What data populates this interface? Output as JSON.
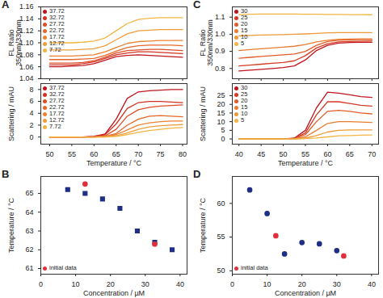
{
  "chart_data": [
    {
      "type": "line",
      "title": "A",
      "ylabel": "FL Ratio\n350nm/330nm",
      "xlabel": null,
      "x": [
        50,
        52.5,
        55,
        57.5,
        60,
        62.5,
        65,
        67.5,
        70,
        72.5,
        75,
        77.5,
        80
      ],
      "xlim": [
        48,
        81
      ],
      "xticks": [
        50,
        55,
        60,
        65,
        70,
        75,
        80
      ],
      "ylim": [
        1.04,
        1.16
      ],
      "yticks": [
        1.04,
        1.06,
        1.08,
        {
          "value": 1.1,
          "label": "1.10"
        },
        1.12,
        1.14,
        1.16
      ],
      "tick_labels": "y",
      "legend": "top-left",
      "series": [
        {
          "name": "37.72",
          "color": "#c0161e",
          "values": [
            1.06,
            1.06,
            1.061,
            1.062,
            1.065,
            1.071,
            1.077,
            1.079,
            1.08,
            1.079,
            1.078,
            1.077,
            1.076
          ]
        },
        {
          "name": "32.72",
          "color": "#d33222",
          "values": [
            1.063,
            1.063,
            1.063,
            1.065,
            1.068,
            1.074,
            1.08,
            1.083,
            1.085,
            1.085,
            1.084,
            1.083,
            1.082
          ]
        },
        {
          "name": "27.72",
          "color": "#de4d26",
          "values": [
            1.066,
            1.066,
            1.066,
            1.067,
            1.07,
            1.076,
            1.083,
            1.087,
            1.088,
            1.089,
            1.089,
            1.088,
            1.087
          ]
        },
        {
          "name": "22.72",
          "color": "#e6672b",
          "values": [
            1.072,
            1.072,
            1.072,
            1.073,
            1.074,
            1.079,
            1.086,
            1.092,
            1.095,
            1.096,
            1.096,
            1.096,
            1.095
          ]
        },
        {
          "name": "17.72",
          "color": "#ec8231",
          "values": [
            1.078,
            1.078,
            1.078,
            1.079,
            1.08,
            1.085,
            1.092,
            1.099,
            1.102,
            1.103,
            1.104,
            1.104,
            1.104
          ]
        },
        {
          "name": "12.72",
          "color": "#f09c3a",
          "values": [
            1.088,
            1.088,
            1.088,
            1.089,
            1.09,
            1.095,
            1.105,
            1.115,
            1.12,
            1.121,
            1.122,
            1.122,
            1.122
          ]
        },
        {
          "name": "7.72",
          "color": "#f2b544",
          "values": [
            1.1,
            1.1,
            1.1,
            1.101,
            1.103,
            1.108,
            1.12,
            1.132,
            1.139,
            1.141,
            1.142,
            1.142,
            1.142
          ]
        }
      ]
    },
    {
      "type": "line",
      "ylabel": "Scattering / mAU",
      "xlabel": "Temperature / °C",
      "x": [
        50,
        52.5,
        55,
        57.5,
        60,
        62.5,
        65,
        67.5,
        70,
        72.5,
        75,
        77.5,
        80
      ],
      "xlim": [
        48,
        81
      ],
      "xticks": [
        50,
        55,
        60,
        65,
        70,
        75,
        80
      ],
      "ylim": [
        -1.2,
        9
      ],
      "yticks": [
        0,
        2,
        4,
        6,
        8
      ],
      "legend": "top-left",
      "series": [
        {
          "name": "37.72",
          "color": "#c0161e",
          "values": [
            0,
            0,
            0,
            0,
            0.1,
            0.5,
            3.0,
            6.5,
            7.6,
            7.8,
            7.9,
            8.0,
            8.0
          ]
        },
        {
          "name": "32.72",
          "color": "#d33222",
          "values": [
            0,
            0,
            0,
            0,
            0.1,
            0.4,
            2.2,
            4.8,
            5.8,
            6.0,
            6.0,
            5.9,
            5.8
          ]
        },
        {
          "name": "27.72",
          "color": "#de4d26",
          "values": [
            0,
            0,
            0,
            0,
            0,
            0.2,
            1.3,
            3.5,
            4.6,
            5.0,
            5.2,
            5.3,
            5.4
          ]
        },
        {
          "name": "22.72",
          "color": "#e6672b",
          "values": [
            0,
            0,
            0,
            0,
            0,
            0.1,
            0.6,
            2.0,
            3.0,
            3.5,
            3.6,
            3.5,
            3.4
          ]
        },
        {
          "name": "17.72",
          "color": "#ec8231",
          "values": [
            0,
            0,
            0,
            0,
            0,
            0.1,
            0.4,
            1.2,
            2.0,
            2.4,
            2.6,
            2.7,
            2.7
          ]
        },
        {
          "name": "12.72",
          "color": "#f09c3a",
          "values": [
            0,
            0,
            0,
            0,
            0,
            0,
            0.2,
            0.7,
            1.3,
            1.7,
            1.9,
            2.0,
            2.1
          ]
        },
        {
          "name": "7.72",
          "color": "#f2b544",
          "values": [
            0,
            0,
            0,
            0,
            0,
            0,
            0.1,
            0.4,
            0.8,
            1.1,
            1.3,
            1.5,
            1.6
          ]
        }
      ]
    },
    {
      "type": "scatter",
      "title": "B",
      "ylabel": "Temperature / °C",
      "xlabel": "Concentration / µM",
      "xlim": [
        0,
        42
      ],
      "xticks": [
        0,
        10,
        20,
        30,
        40
      ],
      "ylim": [
        60.7,
        65.9
      ],
      "yticks": [
        61,
        62,
        63,
        64,
        65
      ],
      "legend": "bottom-left",
      "series": [
        {
          "color": "#1f2f86",
          "marker": "square",
          "x": [
            7.72,
            12.72,
            17.72,
            22.72,
            27.72,
            32.72,
            37.72
          ],
          "values": [
            65.2,
            65.0,
            64.7,
            64.2,
            63.0,
            62.4,
            62.0
          ]
        },
        {
          "name": "initial data",
          "color": "#e0303a",
          "marker": "circle",
          "x": [
            12.72,
            32.72
          ],
          "values": [
            65.5,
            62.3
          ]
        }
      ]
    },
    {
      "type": "line",
      "title": "C",
      "ylabel": "FL Ratio\n350nm/330nm",
      "xlabel": null,
      "x": [
        40,
        42.5,
        45,
        47.5,
        50,
        52.5,
        55,
        57.5,
        60,
        62.5,
        65,
        67.5,
        70
      ],
      "xlim": [
        38.5,
        71.5
      ],
      "xticks": [
        40,
        45,
        50,
        55,
        60,
        65,
        70
      ],
      "ylim": [
        0.74,
        1.16
      ],
      "yticks": [
        0.8,
        0.9,
        {
          "value": 1.0,
          "label": "1.0"
        },
        1.1
      ],
      "tick_labels": "y",
      "legend": "top-left",
      "series": [
        {
          "name": "30",
          "color": "#c0161e",
          "values": [
            0.785,
            0.79,
            0.795,
            0.8,
            0.805,
            0.815,
            0.85,
            0.905,
            0.935,
            0.948,
            0.952,
            0.953,
            0.953
          ]
        },
        {
          "name": "25",
          "color": "#d53a23",
          "values": [
            0.815,
            0.82,
            0.825,
            0.83,
            0.835,
            0.845,
            0.875,
            0.92,
            0.945,
            0.955,
            0.958,
            0.959,
            0.96
          ]
        },
        {
          "name": "20",
          "color": "#e05d2a",
          "values": [
            0.86,
            0.865,
            0.87,
            0.875,
            0.88,
            0.885,
            0.9,
            0.935,
            0.958,
            0.965,
            0.967,
            0.968,
            0.968
          ]
        },
        {
          "name": "15",
          "color": "#e97c30",
          "values": [
            0.905,
            0.91,
            0.915,
            0.92,
            0.925,
            0.93,
            0.94,
            0.955,
            0.965,
            0.97,
            0.972,
            0.973,
            0.973
          ]
        },
        {
          "name": "10",
          "color": "#ee9a38",
          "values": [
            0.99,
            0.993,
            0.995,
            0.997,
            0.998,
            1.0,
            1.002,
            1.005,
            1.008,
            1.01,
            1.01,
            1.01,
            1.01
          ]
        },
        {
          "name": "5",
          "color": "#f2b544",
          "values": [
            1.115,
            1.117,
            1.118,
            1.118,
            1.118,
            1.118,
            1.117,
            1.117,
            1.116,
            1.116,
            1.115,
            1.115,
            1.114
          ]
        }
      ]
    },
    {
      "type": "line",
      "ylabel": "Scattering / mAU",
      "xlabel": "Temperature / °C",
      "x": [
        40,
        42.5,
        45,
        47.5,
        50,
        52.5,
        55,
        57.5,
        60,
        62.5,
        65,
        67.5,
        70
      ],
      "xlim": [
        38.5,
        71.5
      ],
      "xticks": [
        40,
        45,
        50,
        55,
        60,
        65,
        70
      ],
      "ylim": [
        -3,
        32
      ],
      "yticks": [
        0,
        5,
        10,
        15,
        20,
        25
      ],
      "legend": "top-left",
      "series": [
        {
          "name": "30",
          "color": "#c0161e",
          "values": [
            0,
            0,
            0,
            0,
            0,
            0.5,
            5,
            18,
            27,
            26.5,
            25.5,
            24.5,
            24
          ]
        },
        {
          "name": "25",
          "color": "#d53a23",
          "values": [
            0,
            0,
            0,
            0,
            0,
            0.3,
            3.5,
            14,
            21.5,
            21.5,
            20.5,
            19.5,
            19
          ]
        },
        {
          "name": "20",
          "color": "#e05d2a",
          "values": [
            0,
            0,
            0,
            0,
            0,
            0.2,
            2.5,
            10,
            16,
            16.5,
            16,
            15,
            14.5
          ]
        },
        {
          "name": "15",
          "color": "#e97c30",
          "values": [
            0,
            0,
            0,
            0,
            0,
            0.1,
            1.2,
            5,
            9,
            10,
            10,
            9.8,
            9.5
          ]
        },
        {
          "name": "10",
          "color": "#ee9a38",
          "values": [
            0,
            0,
            0,
            0,
            0,
            0,
            0.5,
            2,
            4,
            5,
            5.2,
            5.2,
            5.2
          ]
        },
        {
          "name": "5",
          "color": "#f2b544",
          "values": [
            0,
            0,
            0,
            0,
            0,
            0,
            0.2,
            0.6,
            1.2,
            1.8,
            2,
            2.2,
            2.3
          ]
        }
      ]
    },
    {
      "type": "scatter",
      "title": "D",
      "ylabel": "Temperature / °C",
      "xlabel": "Concentration / µM",
      "xlim": [
        0,
        42
      ],
      "xticks": [
        0,
        10,
        20,
        30,
        40
      ],
      "ylim": [
        49.5,
        64
      ],
      "yticks": [
        50,
        55,
        60
      ],
      "legend": "bottom-left",
      "series": [
        {
          "color": "#1f2f86",
          "marker": "circle",
          "x": [
            5,
            10,
            15,
            20,
            25,
            30
          ],
          "values": [
            62.0,
            58.5,
            52.5,
            54.2,
            54.0,
            53.0
          ]
        },
        {
          "name": "initial data",
          "color": "#e0303a",
          "marker": "circle",
          "x": [
            12.5,
            32
          ],
          "values": [
            55.2,
            52.2
          ]
        }
      ]
    }
  ]
}
